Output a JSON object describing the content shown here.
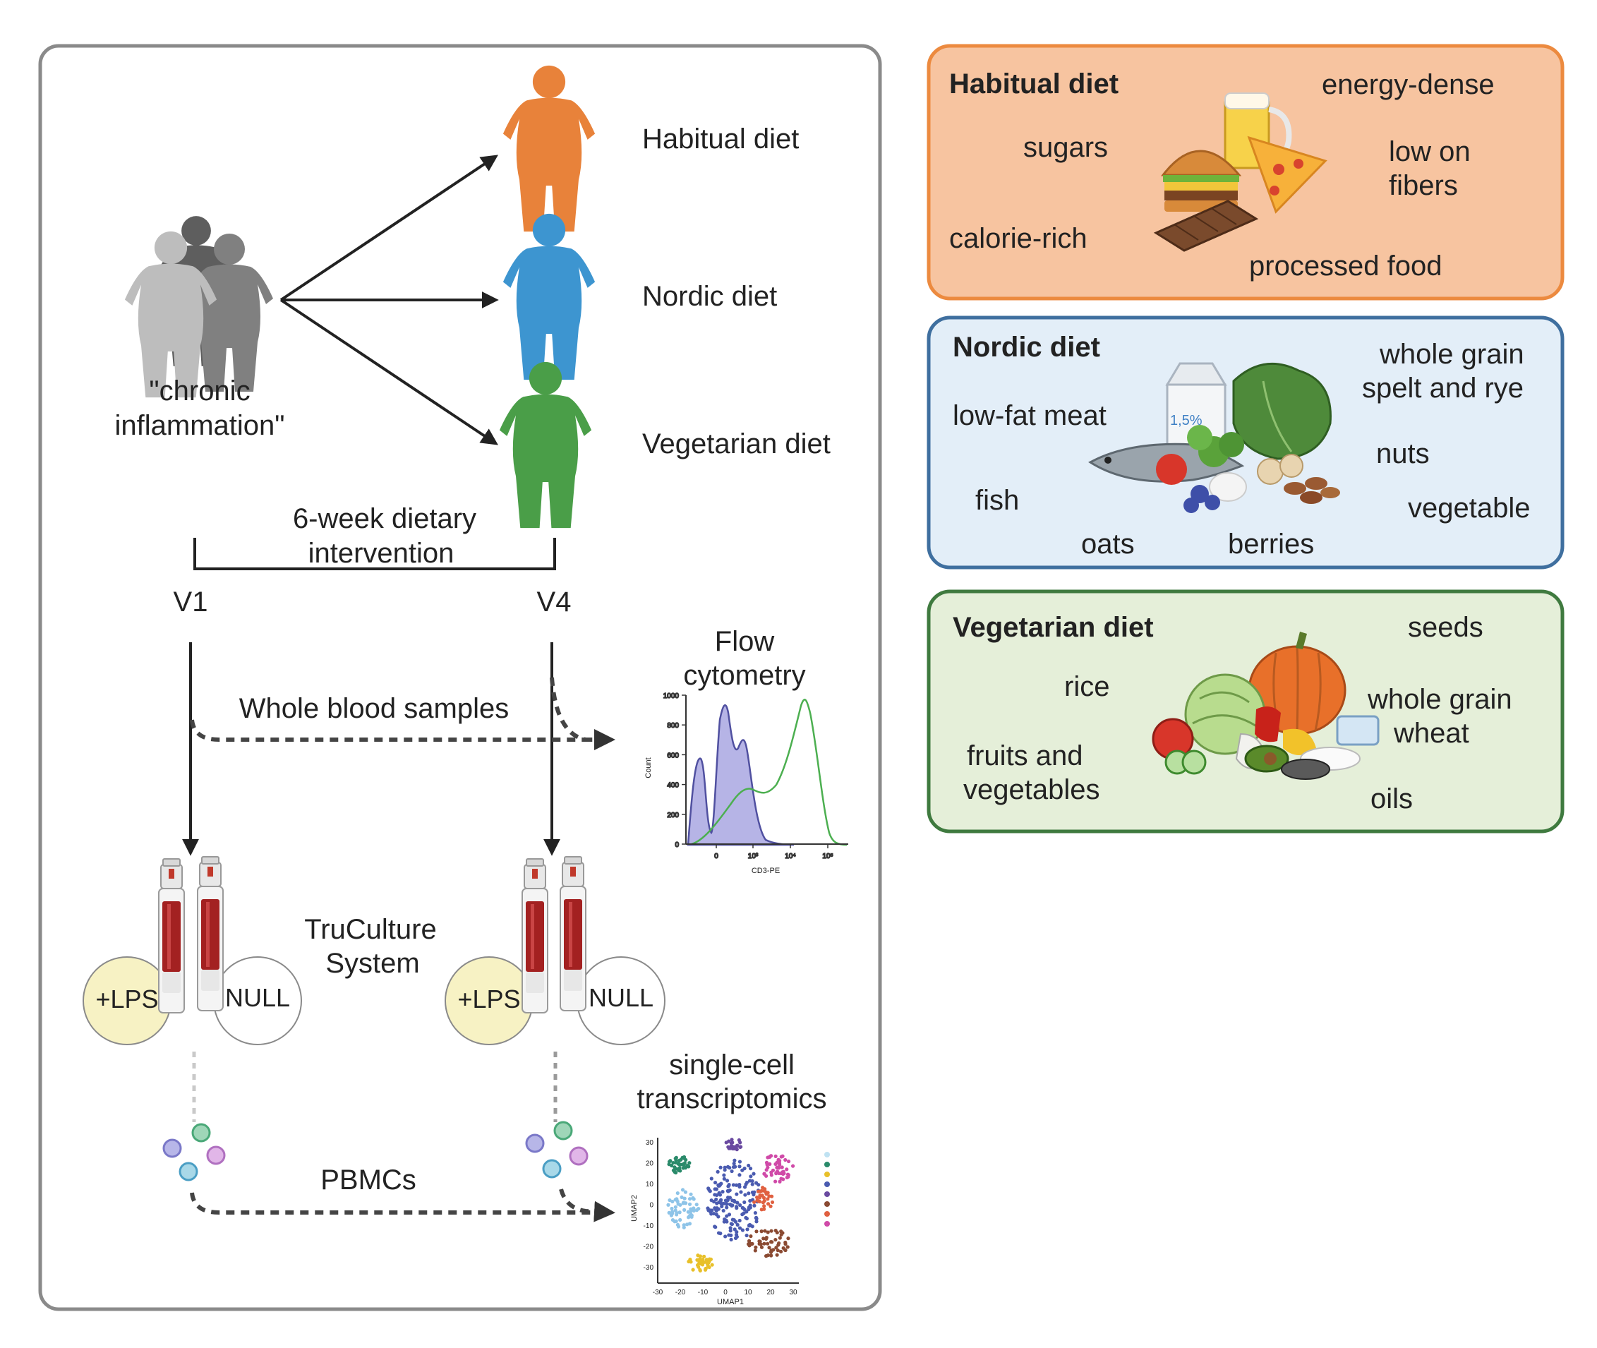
{
  "left_panel": {
    "group_label": [
      "\"chronic",
      "inflammation\""
    ],
    "arms": [
      "Habitual diet",
      "Nordic diet",
      "Vegetarian diet"
    ],
    "intervention_label": [
      "6-week dietary",
      "intervention"
    ],
    "v1": "V1",
    "v4": "V4",
    "whole_blood": "Whole blood samples",
    "flow_label": [
      "Flow",
      "cytometry"
    ],
    "truculture_label": [
      "TruCulture",
      "System"
    ],
    "lps": "+LPS",
    "null": "NULL",
    "scrna_label": [
      "single-cell",
      "transcriptomics"
    ],
    "pbmcs": "PBMCs"
  },
  "flow_plot": {
    "y_ticks": [
      "0",
      "200",
      "400",
      "600",
      "800",
      "1000"
    ],
    "x_ticks": [
      "0",
      "10³",
      "10⁴",
      "10⁵"
    ],
    "ylabel": "Count",
    "xlabel": "CD3-PE"
  },
  "umap_plot": {
    "y_ticks": [
      "30",
      "20",
      "10",
      "0",
      "-10",
      "-20",
      "-30"
    ],
    "x_ticks": [
      "-30",
      "-20",
      "-10",
      "0",
      "10",
      "20",
      "30"
    ],
    "ylabel": "UMAP2",
    "xlabel": "UMAP1"
  },
  "diets": {
    "habitual": {
      "title": "Habitual diet",
      "items": [
        "energy-dense",
        "sugars",
        "low on",
        "fibers",
        "calorie-rich",
        "processed food"
      ]
    },
    "nordic": {
      "title": "Nordic diet",
      "items": [
        "whole grain",
        "spelt and rye",
        "low-fat meat",
        "nuts",
        "fish",
        "vegetable",
        "oats",
        "berries"
      ],
      "milk_label": "1,5%"
    },
    "vegetarian": {
      "title": "Vegetarian diet",
      "items": [
        "seeds",
        "rice",
        "whole grain",
        "wheat",
        "fruits and",
        "vegetables",
        "oils"
      ]
    }
  },
  "colors": {
    "habitual": "#e8823a",
    "nordic": "#3d95d0",
    "vegetarian": "#4a9e48",
    "habitual_box_fill": "#f7c4a0",
    "habitual_box_stroke": "#ec8a3f",
    "nordic_box_fill": "#e3eef8",
    "nordic_box_stroke": "#3f6f9f",
    "vegetarian_box_fill": "#e5efd9",
    "vegetarian_box_stroke": "#3f7a3f",
    "lps_circle": "#f7f2c4"
  }
}
